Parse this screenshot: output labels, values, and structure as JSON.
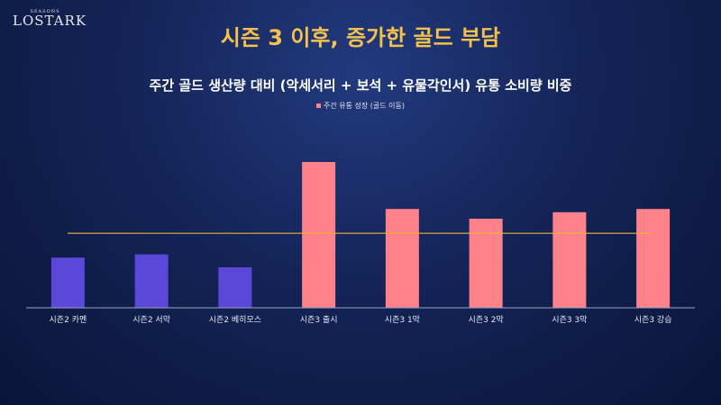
{
  "logo": {
    "small": "SEASONS",
    "main": "LOSTARK"
  },
  "chart_data": {
    "type": "bar",
    "title": "시즌 3 이후, 증가한 골드 부담",
    "subtitle": "주간 골드 생산량 대비 (악세서리 + 보석 + 유물각인서) 유통 소비량 비중",
    "legend": [
      {
        "name": "주간 유통 성장 (골드 이동)",
        "color": "#ff8189"
      }
    ],
    "categories": [
      "시즌2 카멘",
      "시즌2 서막",
      "시즌2 베히모스",
      "시즌3 출시",
      "시즌3 1막",
      "시즌3 2막",
      "시즌3 3막",
      "시즌3 강습"
    ],
    "values": [
      31,
      33,
      25,
      90,
      61,
      55,
      59,
      61
    ],
    "colors": [
      "#5b47d8",
      "#5b47d8",
      "#5b47d8",
      "#ff8189",
      "#ff8189",
      "#ff8189",
      "#ff8189",
      "#ff8189"
    ],
    "reference_line": {
      "value": 46,
      "color": "#e8b23a"
    },
    "ylim": [
      0,
      100
    ],
    "axis_color": "#9aa5c4",
    "grid": false,
    "legend_placement": "top-center"
  }
}
